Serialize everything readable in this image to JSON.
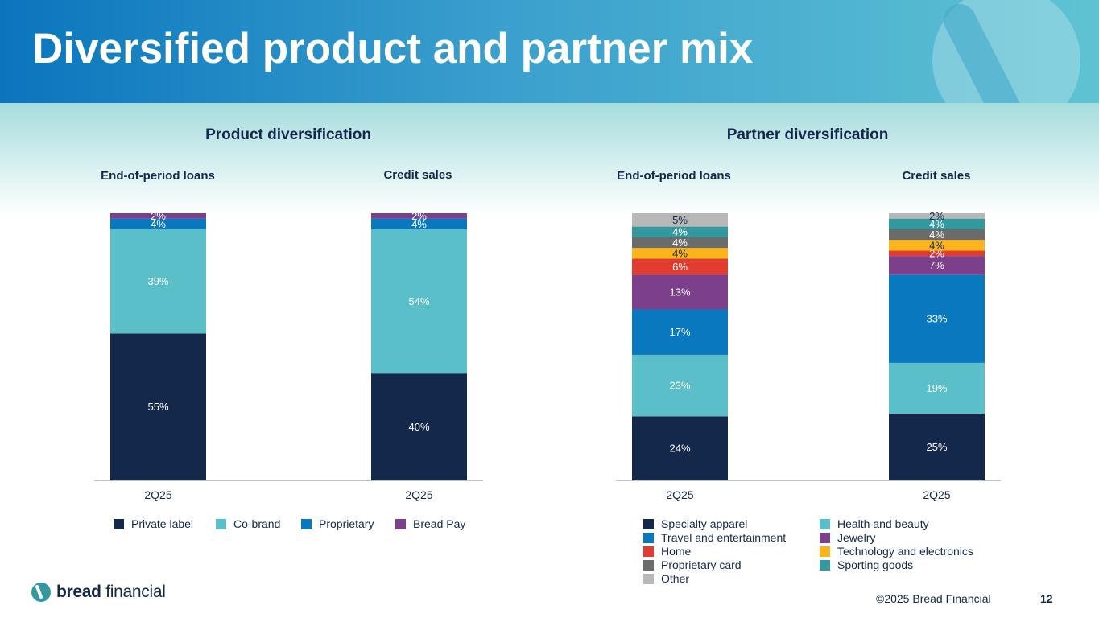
{
  "title": "Diversified product and partner mix",
  "colors": {
    "private_label": "#14284b",
    "co_brand": "#5bbfc9",
    "proprietary": "#0a78be",
    "bread_pay": "#7b3f8c",
    "specialty_apparel": "#14284b",
    "health_beauty": "#5bbfc9",
    "travel": "#0a78be",
    "jewelry": "#7b3f8c",
    "home": "#e03c31",
    "tech": "#fbb51a",
    "proprietary_card": "#6b6b6b",
    "sporting": "#34999f",
    "other": "#b8b8b8"
  },
  "product": {
    "section_title": "Product diversification",
    "left_label": "End-of-period loans",
    "right_label": "Credit sales",
    "legend": [
      {
        "name": "Private label",
        "color": "#14284b"
      },
      {
        "name": "Co-brand",
        "color": "#5bbfc9"
      },
      {
        "name": "Proprietary",
        "color": "#0a78be"
      },
      {
        "name": "Bread Pay",
        "color": "#7b3f8c"
      }
    ]
  },
  "partner": {
    "section_title": "Partner diversification",
    "left_label": "End-of-period loans",
    "right_label": "Credit sales",
    "legend": [
      {
        "name": "Specialty apparel",
        "color": "#14284b"
      },
      {
        "name": "Health and beauty",
        "color": "#5bbfc9"
      },
      {
        "name": "Travel and entertainment",
        "color": "#0a78be"
      },
      {
        "name": "Jewelry",
        "color": "#7b3f8c"
      },
      {
        "name": "Home",
        "color": "#e03c31"
      },
      {
        "name": "Technology and electronics",
        "color": "#fbb51a"
      },
      {
        "name": "Proprietary card",
        "color": "#6b6b6b"
      },
      {
        "name": "Sporting goods",
        "color": "#34999f"
      },
      {
        "name": "Other",
        "color": "#b8b8b8"
      }
    ]
  },
  "chart_data": [
    {
      "type": "bar",
      "stacked": true,
      "title": "Product diversification",
      "categories": [
        "2Q25",
        "2Q25"
      ],
      "category_groups": [
        "End-of-period loans",
        "Credit sales"
      ],
      "series": [
        {
          "name": "Private label",
          "color": "#14284b",
          "values": [
            55,
            40
          ],
          "labels": [
            "55%",
            "40%"
          ]
        },
        {
          "name": "Co-brand",
          "color": "#5bbfc9",
          "values": [
            39,
            54
          ],
          "labels": [
            "39%",
            "54%"
          ]
        },
        {
          "name": "Proprietary",
          "color": "#0a78be",
          "values": [
            4,
            4
          ],
          "labels": [
            "4%",
            "4%"
          ]
        },
        {
          "name": "Bread Pay",
          "color": "#7b3f8c",
          "values": [
            2,
            2
          ],
          "labels": [
            "2%",
            "2%"
          ]
        }
      ],
      "ylim": [
        0,
        100
      ]
    },
    {
      "type": "bar",
      "stacked": true,
      "title": "Partner diversification",
      "categories": [
        "2Q25",
        "2Q25"
      ],
      "category_groups": [
        "End-of-period loans",
        "Credit sales"
      ],
      "series": [
        {
          "name": "Specialty apparel",
          "color": "#14284b",
          "values": [
            24,
            25
          ],
          "labels": [
            "24%",
            "25%"
          ]
        },
        {
          "name": "Health and beauty",
          "color": "#5bbfc9",
          "values": [
            23,
            19
          ],
          "labels": [
            "23%",
            "19%"
          ]
        },
        {
          "name": "Travel and entertainment",
          "color": "#0a78be",
          "values": [
            17,
            33
          ],
          "labels": [
            "17%",
            "33%"
          ]
        },
        {
          "name": "Jewelry",
          "color": "#7b3f8c",
          "values": [
            13,
            7
          ],
          "labels": [
            "13%",
            "7%"
          ]
        },
        {
          "name": "Home",
          "color": "#e03c31",
          "values": [
            6,
            2
          ],
          "labels": [
            "6%",
            "2%"
          ]
        },
        {
          "name": "Technology and electronics",
          "color": "#fbb51a",
          "values": [
            4,
            4
          ],
          "labels": [
            "4%",
            "4%"
          ]
        },
        {
          "name": "Proprietary card",
          "color": "#6b6b6b",
          "values": [
            4,
            4
          ],
          "labels": [
            "4%",
            "4%"
          ]
        },
        {
          "name": "Sporting goods",
          "color": "#34999f",
          "values": [
            4,
            4
          ],
          "labels": [
            "4%",
            "4%"
          ]
        },
        {
          "name": "Other",
          "color": "#b8b8b8",
          "values": [
            5,
            2
          ],
          "labels": [
            "5%",
            "2%"
          ]
        }
      ],
      "ylim": [
        0,
        100
      ]
    }
  ],
  "footer": {
    "brand_bold": "bread",
    "brand_light": "financial",
    "copyright": "©2025 Bread Financial",
    "page": "12"
  }
}
